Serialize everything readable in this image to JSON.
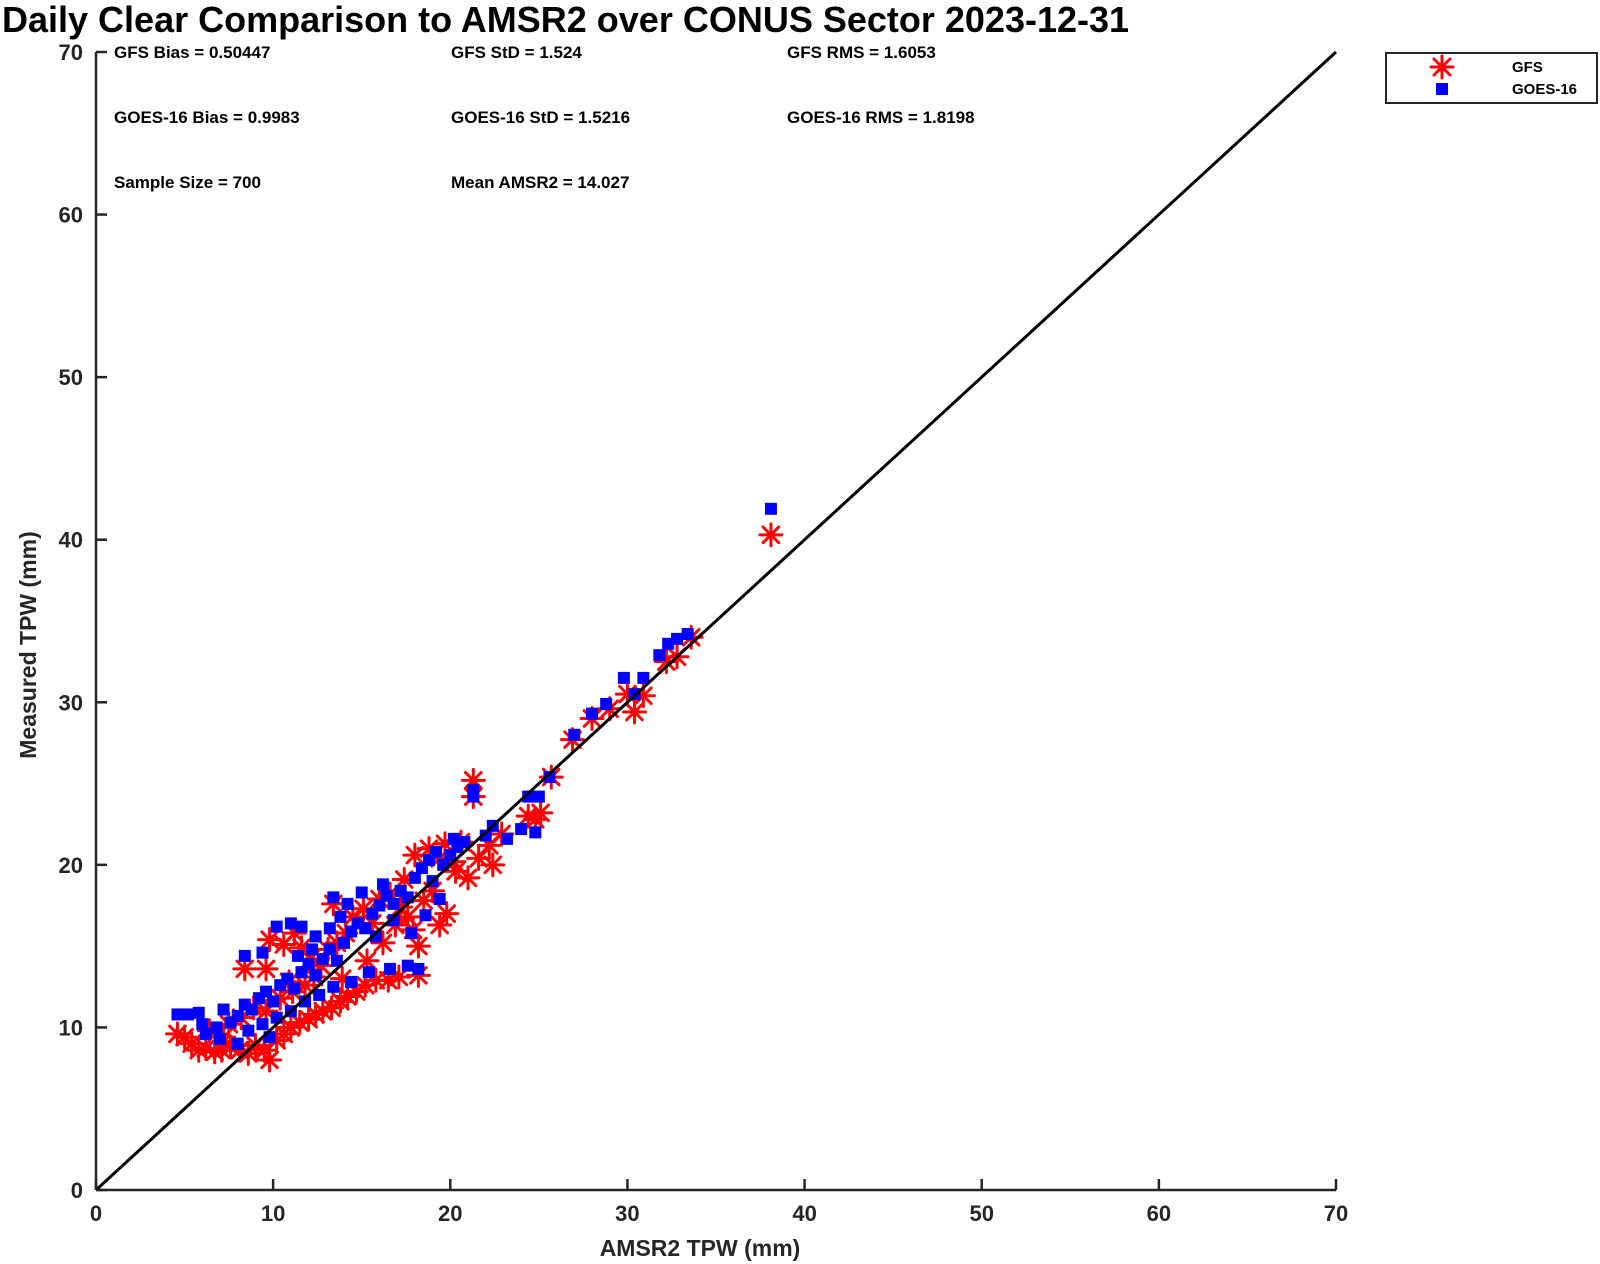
{
  "chart_data": {
    "type": "scatter",
    "title": "Daily Clear Comparison to AMSR2 over CONUS Sector 2023-12-31",
    "xlabel": "AMSR2 TPW (mm)",
    "ylabel": "Measured TPW (mm)",
    "xlim": [
      0,
      70
    ],
    "ylim": [
      0,
      70
    ],
    "xticks": [
      "0",
      "10",
      "20",
      "30",
      "40",
      "50",
      "60",
      "70"
    ],
    "yticks": [
      "0",
      "10",
      "20",
      "30",
      "40",
      "50",
      "60",
      "70"
    ],
    "grid": false,
    "legend_position": "outside-top-right",
    "reference_line": {
      "from": [
        0,
        0
      ],
      "to": [
        70,
        70
      ],
      "color": "#000000"
    },
    "stats": {
      "gfs_bias": "GFS Bias = 0.50447",
      "gfs_std": "GFS StD = 1.524",
      "gfs_rms": "GFS RMS = 1.6053",
      "goes_bias": "GOES-16 Bias = 0.9983",
      "goes_std": "GOES-16 StD = 1.5216",
      "goes_rms": "GOES-16 RMS = 1.8198",
      "sample_size": "Sample Size = 700",
      "mean_amsr2": "Mean AMSR2 = 14.027"
    },
    "series": [
      {
        "name": "GFS",
        "marker": "asterisk",
        "color": "#ff0000",
        "points": [
          [
            4.6,
            9.6
          ],
          [
            5.0,
            9.4
          ],
          [
            5.4,
            9.0
          ],
          [
            5.8,
            8.6
          ],
          [
            6.2,
            8.7
          ],
          [
            6.7,
            8.5
          ],
          [
            7.1,
            8.6
          ],
          [
            7.6,
            8.8
          ],
          [
            8.1,
            8.6
          ],
          [
            8.6,
            8.4
          ],
          [
            9.0,
            8.9
          ],
          [
            9.5,
            8.6
          ],
          [
            9.8,
            8.0
          ],
          [
            10.2,
            9.2
          ],
          [
            10.6,
            9.6
          ],
          [
            11.0,
            10.0
          ],
          [
            11.5,
            10.3
          ],
          [
            12.0,
            10.5
          ],
          [
            12.4,
            10.8
          ],
          [
            12.8,
            11.0
          ],
          [
            13.3,
            11.2
          ],
          [
            13.8,
            11.6
          ],
          [
            14.2,
            11.9
          ],
          [
            14.7,
            12.2
          ],
          [
            15.2,
            12.6
          ],
          [
            15.8,
            12.9
          ],
          [
            16.5,
            12.9
          ],
          [
            17.1,
            13.1
          ],
          [
            18.2,
            13.2
          ],
          [
            8.4,
            13.6
          ],
          [
            9.6,
            13.6
          ],
          [
            9.8,
            15.4
          ],
          [
            10.6,
            15.1
          ],
          [
            11.2,
            15.8
          ],
          [
            11.6,
            14.9
          ],
          [
            12.1,
            14.2
          ],
          [
            12.7,
            13.8
          ],
          [
            13.1,
            14.8
          ],
          [
            13.6,
            15.2
          ],
          [
            14.1,
            15.8
          ],
          [
            13.4,
            17.6
          ],
          [
            14.5,
            16.8
          ],
          [
            15.1,
            17.3
          ],
          [
            15.6,
            16.4
          ],
          [
            16.0,
            17.9
          ],
          [
            16.6,
            18.2
          ],
          [
            17.2,
            17.4
          ],
          [
            17.6,
            16.8
          ],
          [
            17.9,
            16.0
          ],
          [
            18.2,
            15.0
          ],
          [
            18.5,
            17.8
          ],
          [
            18.0,
            20.6
          ],
          [
            18.8,
            21.0
          ],
          [
            19.4,
            20.4
          ],
          [
            19.7,
            21.3
          ],
          [
            20.2,
            20.2
          ],
          [
            20.6,
            21.4
          ],
          [
            19.4,
            16.3
          ],
          [
            19.8,
            17.0
          ],
          [
            21.0,
            19.2
          ],
          [
            21.6,
            20.4
          ],
          [
            22.2,
            21.2
          ],
          [
            22.4,
            20.0
          ],
          [
            21.3,
            24.2
          ],
          [
            21.3,
            25.2
          ],
          [
            24.4,
            23.0
          ],
          [
            24.8,
            22.8
          ],
          [
            25.1,
            23.2
          ],
          [
            25.7,
            25.4
          ],
          [
            26.9,
            27.7
          ],
          [
            28.0,
            29.0
          ],
          [
            29.0,
            29.6
          ],
          [
            30.0,
            30.5
          ],
          [
            30.4,
            29.4
          ],
          [
            30.9,
            30.4
          ],
          [
            32.2,
            32.5
          ],
          [
            32.8,
            32.8
          ],
          [
            33.6,
            34.0
          ],
          [
            38.1,
            40.3
          ],
          [
            7.5,
            10.2
          ],
          [
            8.2,
            10.6
          ],
          [
            8.9,
            11.2
          ],
          [
            9.6,
            11.0
          ],
          [
            10.4,
            11.8
          ],
          [
            11.1,
            12.2
          ],
          [
            11.8,
            12.6
          ],
          [
            6.4,
            9.8
          ],
          [
            7.2,
            9.4
          ],
          [
            10.9,
            12.8
          ],
          [
            12.3,
            13.1
          ],
          [
            13.9,
            13.0
          ],
          [
            15.3,
            14.1
          ],
          [
            16.2,
            15.2
          ],
          [
            16.9,
            16.3
          ],
          [
            17.4,
            19.1
          ],
          [
            19.0,
            18.4
          ],
          [
            20.3,
            19.6
          ],
          [
            22.9,
            21.9
          ]
        ]
      },
      {
        "name": "GOES-16",
        "marker": "square",
        "color": "#0000ff",
        "points": [
          [
            4.6,
            10.8
          ],
          [
            5.2,
            10.8
          ],
          [
            5.8,
            10.9
          ],
          [
            6.2,
            9.6
          ],
          [
            6.8,
            10.0
          ],
          [
            7.2,
            11.1
          ],
          [
            7.6,
            10.3
          ],
          [
            8.0,
            10.7
          ],
          [
            8.4,
            11.4
          ],
          [
            8.8,
            11.1
          ],
          [
            9.2,
            11.8
          ],
          [
            9.6,
            12.2
          ],
          [
            10.0,
            11.6
          ],
          [
            10.4,
            12.6
          ],
          [
            10.8,
            13.0
          ],
          [
            11.2,
            12.4
          ],
          [
            11.6,
            13.4
          ],
          [
            12.0,
            13.9
          ],
          [
            12.4,
            13.2
          ],
          [
            12.8,
            14.2
          ],
          [
            13.2,
            14.8
          ],
          [
            13.6,
            14.1
          ],
          [
            14.0,
            15.2
          ],
          [
            14.4,
            15.9
          ],
          [
            14.8,
            16.4
          ],
          [
            15.2,
            16.1
          ],
          [
            15.6,
            17.0
          ],
          [
            16.0,
            17.5
          ],
          [
            16.4,
            18.1
          ],
          [
            16.8,
            17.6
          ],
          [
            17.2,
            18.4
          ],
          [
            17.6,
            18.0
          ],
          [
            18.0,
            19.2
          ],
          [
            18.4,
            19.8
          ],
          [
            18.8,
            20.3
          ],
          [
            19.2,
            20.8
          ],
          [
            19.6,
            20.0
          ],
          [
            20.0,
            20.6
          ],
          [
            20.4,
            21.1
          ],
          [
            20.8,
            21.4
          ],
          [
            21.3,
            24.6
          ],
          [
            21.3,
            24.2
          ],
          [
            22.0,
            21.8
          ],
          [
            22.4,
            22.4
          ],
          [
            23.2,
            21.6
          ],
          [
            24.0,
            22.2
          ],
          [
            24.4,
            24.2
          ],
          [
            24.8,
            22.0
          ],
          [
            25.0,
            24.2
          ],
          [
            25.6,
            25.4
          ],
          [
            27.0,
            28.0
          ],
          [
            28.0,
            29.3
          ],
          [
            28.8,
            29.9
          ],
          [
            29.8,
            31.5
          ],
          [
            30.4,
            30.5
          ],
          [
            30.9,
            31.5
          ],
          [
            31.8,
            32.9
          ],
          [
            32.3,
            33.6
          ],
          [
            32.8,
            33.9
          ],
          [
            33.4,
            34.2
          ],
          [
            38.1,
            41.9
          ],
          [
            8.4,
            14.4
          ],
          [
            9.4,
            14.6
          ],
          [
            10.2,
            16.2
          ],
          [
            11.0,
            16.4
          ],
          [
            11.6,
            16.2
          ],
          [
            12.4,
            15.6
          ],
          [
            13.2,
            16.1
          ],
          [
            13.4,
            18.0
          ],
          [
            14.2,
            17.6
          ],
          [
            15.0,
            18.3
          ],
          [
            16.2,
            18.8
          ],
          [
            18.2,
            13.6
          ],
          [
            17.8,
            15.8
          ],
          [
            18.6,
            16.9
          ],
          [
            19.4,
            17.9
          ],
          [
            8.6,
            9.8
          ],
          [
            9.4,
            10.2
          ],
          [
            10.2,
            10.6
          ],
          [
            11.0,
            11.0
          ],
          [
            11.8,
            11.6
          ],
          [
            12.6,
            12.0
          ],
          [
            13.4,
            12.5
          ],
          [
            14.4,
            12.8
          ],
          [
            15.4,
            13.4
          ],
          [
            16.6,
            13.6
          ],
          [
            17.6,
            13.8
          ],
          [
            9.8,
            9.4
          ],
          [
            7.0,
            9.3
          ],
          [
            8.0,
            9.0
          ],
          [
            6.0,
            10.2
          ],
          [
            11.4,
            14.4
          ],
          [
            12.2,
            14.8
          ],
          [
            13.8,
            16.8
          ],
          [
            15.8,
            15.6
          ],
          [
            16.8,
            16.6
          ],
          [
            19.0,
            19.0
          ],
          [
            20.2,
            21.6
          ]
        ]
      }
    ]
  }
}
